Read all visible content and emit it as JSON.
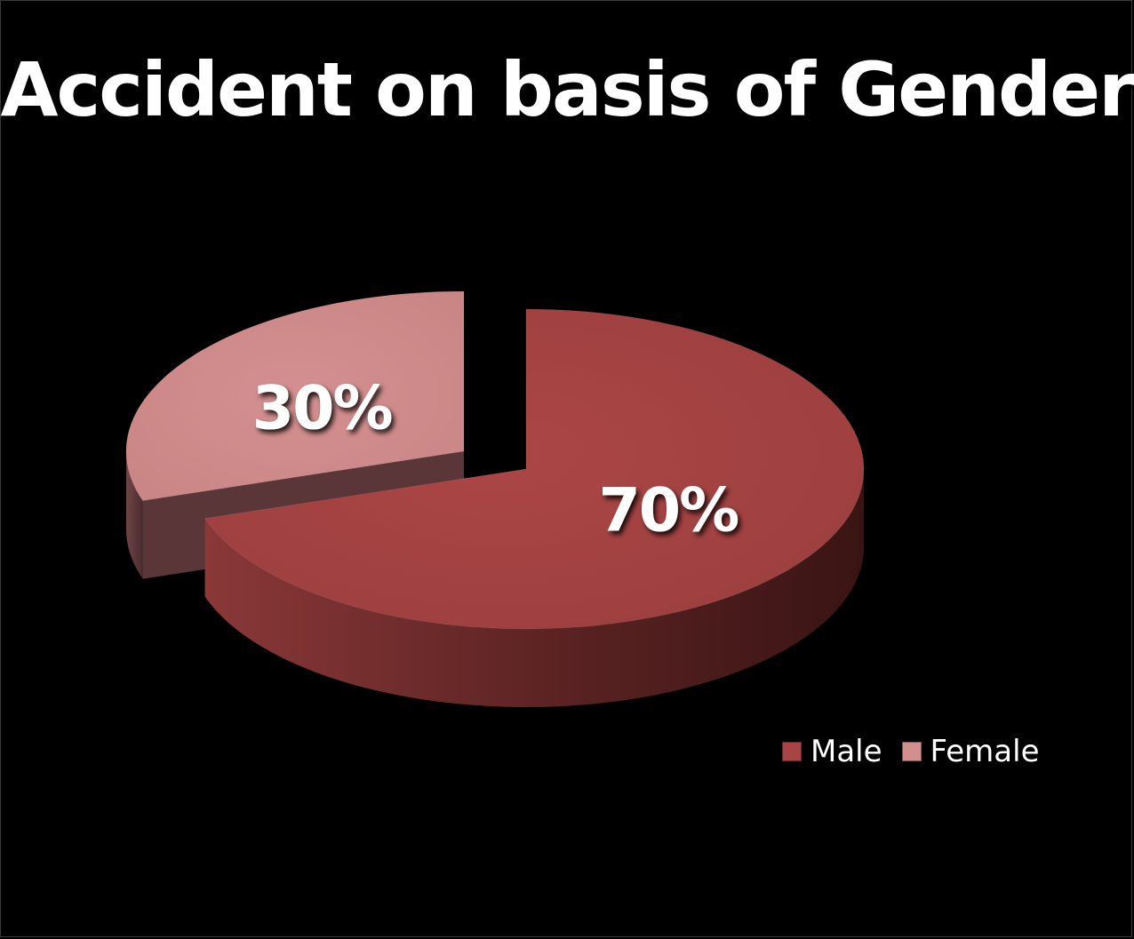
{
  "chart_data": {
    "type": "pie",
    "title": "Accident on basis of Gender",
    "slices": [
      {
        "name": "Male",
        "value": 70,
        "label": "70%",
        "color": "#a84444"
      },
      {
        "name": "Female",
        "value": 30,
        "label": "30%",
        "color": "#d38e8e"
      }
    ],
    "legend_position": "bottom-right",
    "style": "3d-exploded"
  }
}
